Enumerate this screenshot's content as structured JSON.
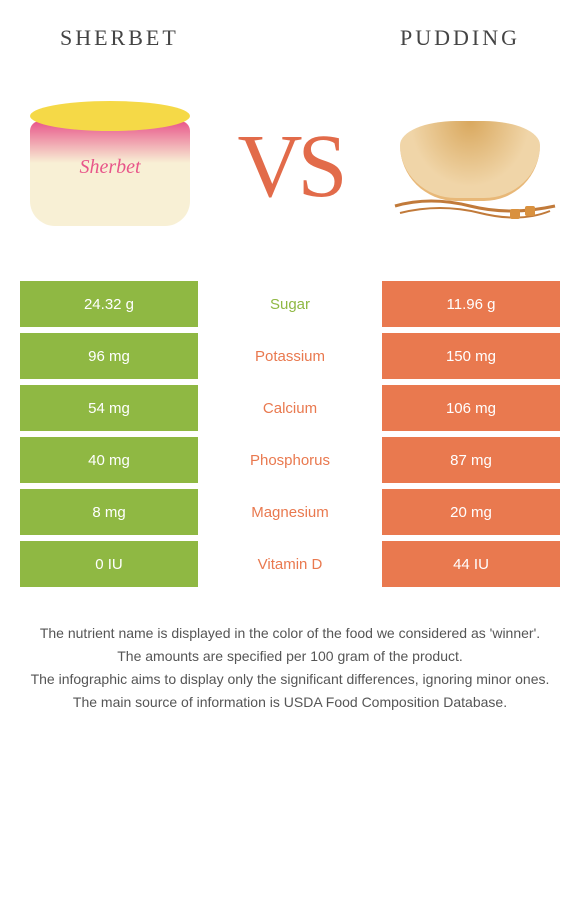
{
  "header": {
    "left": "SHERBET",
    "right": "PUDDING"
  },
  "vs": "VS",
  "colors": {
    "left": "#8fb843",
    "right": "#e9794f",
    "mid_bg": "#ffffff"
  },
  "table": {
    "label_fontsize": 15,
    "value_fontsize": 15,
    "rows": [
      {
        "left": "24.32 g",
        "label": "Sugar",
        "right": "11.96 g",
        "winner": "left"
      },
      {
        "left": "96 mg",
        "label": "Potassium",
        "right": "150 mg",
        "winner": "right"
      },
      {
        "left": "54 mg",
        "label": "Calcium",
        "right": "106 mg",
        "winner": "right"
      },
      {
        "left": "40 mg",
        "label": "Phosphorus",
        "right": "87 mg",
        "winner": "right"
      },
      {
        "left": "8 mg",
        "label": "Magnesium",
        "right": "20 mg",
        "winner": "right"
      },
      {
        "left": "0 IU",
        "label": "Vitamin D",
        "right": "44 IU",
        "winner": "right"
      }
    ]
  },
  "footnotes": [
    "The nutrient name is displayed in the color of the food we considered as 'winner'.",
    "The amounts are specified per 100 gram of the product.",
    "The infographic aims to display only the significant differences, ignoring minor ones.",
    "The main source of information is USDA Food Composition Database."
  ],
  "sherbet_label": "Sherbet"
}
